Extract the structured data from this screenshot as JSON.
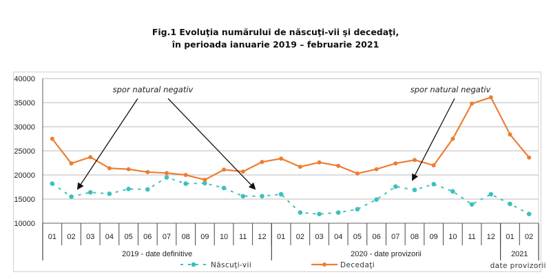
{
  "title": {
    "line1": "Fig.1 Evoluţia numărului de născuţi-vii şi decedaţi,",
    "line2": "în perioada ianuarie 2019 –  februarie 2021"
  },
  "chart_data": {
    "type": "line",
    "title": "Fig.1 Evoluţia numărului de născuţi-vii şi decedaţi, în perioada ianuarie 2019 – februarie 2021",
    "xlabel": "",
    "ylabel": "",
    "ylim": [
      10000,
      40000
    ],
    "yticks": [
      10000,
      15000,
      20000,
      25000,
      30000,
      35000,
      40000
    ],
    "grid": true,
    "legend_position": "bottom",
    "categories": [
      "01",
      "02",
      "03",
      "04",
      "05",
      "06",
      "07",
      "08",
      "09",
      "10",
      "11",
      "12",
      "01",
      "02",
      "03",
      "04",
      "05",
      "06",
      "07",
      "08",
      "09",
      "10",
      "11",
      "12",
      "01",
      "02"
    ],
    "category_groups": [
      {
        "label": "2019 - date definitive",
        "count": 12
      },
      {
        "label": "2020 - date provizorii",
        "count": 12
      },
      {
        "label": "2021",
        "count": 2,
        "sublabel": "date provizorii"
      }
    ],
    "series": [
      {
        "name": "Născuţi-vii",
        "color": "#3cbfbf",
        "style": "dashed-marker",
        "values": [
          18200,
          15500,
          16400,
          16100,
          17100,
          17000,
          19500,
          18200,
          18300,
          17300,
          15600,
          15600,
          16000,
          12200,
          11900,
          12200,
          12900,
          14900,
          17600,
          16900,
          18100,
          16600,
          13900,
          16000,
          14000,
          11900
        ]
      },
      {
        "name": "Decedaţi",
        "color": "#ed7d31",
        "style": "solid-marker",
        "values": [
          27500,
          22400,
          23700,
          21400,
          21200,
          20600,
          20400,
          20000,
          19000,
          21100,
          20700,
          22700,
          23400,
          21700,
          22600,
          21900,
          20300,
          21200,
          22400,
          23100,
          22000,
          27500,
          34800,
          36100,
          28400,
          23600
        ]
      }
    ],
    "annotations": [
      {
        "text": "spor natural negativ",
        "points_to": [
          "2019-02",
          "2019-12"
        ]
      },
      {
        "text": "spor natural negativ",
        "points_to": [
          "2020-08"
        ]
      }
    ]
  }
}
